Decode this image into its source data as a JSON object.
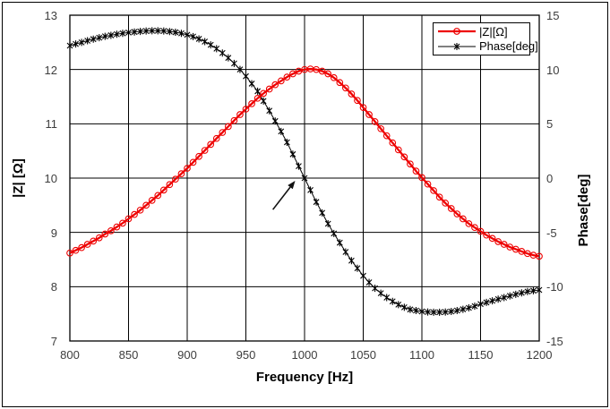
{
  "window": {
    "background": "#ffffff",
    "frame_color": "#000000"
  },
  "chart_data": {
    "type": "line",
    "title": "",
    "xlabel": "Frequency [Hz]",
    "ylabel_left": "|Z| [Ω]",
    "ylabel_right": "Phase[deg]",
    "x_range": [
      800,
      1200
    ],
    "x_ticks": [
      800,
      850,
      900,
      950,
      1000,
      1050,
      1100,
      1150,
      1200
    ],
    "y_left_range": [
      7,
      13
    ],
    "y_left_ticks": [
      13,
      12,
      11,
      10,
      9,
      8,
      7
    ],
    "y_right_range": [
      -15,
      15
    ],
    "y_right_ticks": [
      15,
      10,
      5,
      0,
      -5,
      -10,
      -15
    ],
    "grid": true,
    "grid_color": "#000000",
    "legend": {
      "position": "top-right",
      "entries": [
        {
          "label": "|Z|[Ω]",
          "color": "#ee0000",
          "marker": "circle"
        },
        {
          "label": "Phase[deg]",
          "color": "#000000",
          "marker": "asterisk"
        }
      ]
    },
    "annotation_arrow": {
      "x1": 973,
      "y1_left": 9.42,
      "x2": 992,
      "y2_left": 9.95,
      "color": "#111111"
    },
    "series": [
      {
        "name": "|Z|[Ω]",
        "axis": "left",
        "color": "#ee0000",
        "marker": "circle",
        "line_width": 2.3,
        "x": [
          800,
          805,
          810,
          815,
          820,
          825,
          830,
          835,
          840,
          845,
          850,
          855,
          860,
          865,
          870,
          875,
          880,
          885,
          890,
          895,
          900,
          905,
          910,
          915,
          920,
          925,
          930,
          935,
          940,
          945,
          950,
          955,
          960,
          965,
          970,
          975,
          980,
          985,
          990,
          995,
          1000,
          1005,
          1010,
          1015,
          1020,
          1025,
          1030,
          1035,
          1040,
          1045,
          1050,
          1055,
          1060,
          1065,
          1070,
          1075,
          1080,
          1085,
          1090,
          1095,
          1100,
          1105,
          1110,
          1115,
          1120,
          1125,
          1130,
          1135,
          1140,
          1145,
          1150,
          1155,
          1160,
          1165,
          1170,
          1175,
          1180,
          1185,
          1190,
          1195,
          1200
        ],
        "values": [
          8.62,
          8.67,
          8.72,
          8.78,
          8.84,
          8.9,
          8.97,
          9.03,
          9.1,
          9.17,
          9.25,
          9.33,
          9.41,
          9.5,
          9.59,
          9.68,
          9.78,
          9.88,
          9.98,
          10.08,
          10.18,
          10.29,
          10.4,
          10.51,
          10.62,
          10.73,
          10.84,
          10.95,
          11.06,
          11.17,
          11.27,
          11.37,
          11.47,
          11.56,
          11.64,
          11.72,
          11.79,
          11.86,
          11.92,
          11.97,
          12.0,
          12.01,
          12.0,
          11.97,
          11.92,
          11.85,
          11.76,
          11.66,
          11.55,
          11.43,
          11.3,
          11.17,
          11.04,
          10.91,
          10.78,
          10.65,
          10.52,
          10.39,
          10.26,
          10.13,
          10.01,
          9.89,
          9.77,
          9.65,
          9.54,
          9.44,
          9.34,
          9.25,
          9.16,
          9.09,
          9.02,
          8.95,
          8.89,
          8.83,
          8.78,
          8.73,
          8.69,
          8.65,
          8.61,
          8.58,
          8.56
        ]
      },
      {
        "name": "Phase[deg]",
        "axis": "right",
        "color": "#000000",
        "marker": "asterisk",
        "line_width": 1,
        "x": [
          800,
          805,
          810,
          815,
          820,
          825,
          830,
          835,
          840,
          845,
          850,
          855,
          860,
          865,
          870,
          875,
          880,
          885,
          890,
          895,
          900,
          905,
          910,
          915,
          920,
          925,
          930,
          935,
          940,
          945,
          950,
          955,
          960,
          965,
          970,
          975,
          980,
          985,
          990,
          995,
          1000,
          1005,
          1010,
          1015,
          1020,
          1025,
          1030,
          1035,
          1040,
          1045,
          1050,
          1055,
          1060,
          1065,
          1070,
          1075,
          1080,
          1085,
          1090,
          1095,
          1100,
          1105,
          1110,
          1115,
          1120,
          1125,
          1130,
          1135,
          1140,
          1145,
          1150,
          1155,
          1160,
          1165,
          1170,
          1175,
          1180,
          1185,
          1190,
          1195,
          1200
        ],
        "values": [
          12.2,
          12.35,
          12.5,
          12.65,
          12.8,
          12.93,
          13.05,
          13.15,
          13.25,
          13.33,
          13.4,
          13.46,
          13.51,
          13.55,
          13.57,
          13.57,
          13.55,
          13.5,
          13.43,
          13.33,
          13.2,
          13.03,
          12.82,
          12.57,
          12.27,
          11.92,
          11.52,
          11.07,
          10.56,
          10.0,
          9.38,
          8.7,
          8.0,
          7.1,
          6.2,
          5.25,
          4.3,
          3.3,
          2.2,
          1.1,
          0.0,
          -1.1,
          -2.2,
          -3.2,
          -4.2,
          -5.1,
          -5.95,
          -6.8,
          -7.6,
          -8.3,
          -9.0,
          -9.6,
          -10.15,
          -10.6,
          -11.0,
          -11.35,
          -11.65,
          -11.9,
          -12.1,
          -12.2,
          -12.28,
          -12.33,
          -12.35,
          -12.35,
          -12.33,
          -12.28,
          -12.2,
          -12.08,
          -11.95,
          -11.8,
          -11.6,
          -11.45,
          -11.3,
          -11.15,
          -11.0,
          -10.85,
          -10.7,
          -10.57,
          -10.45,
          -10.37,
          -10.3
        ]
      }
    ]
  }
}
